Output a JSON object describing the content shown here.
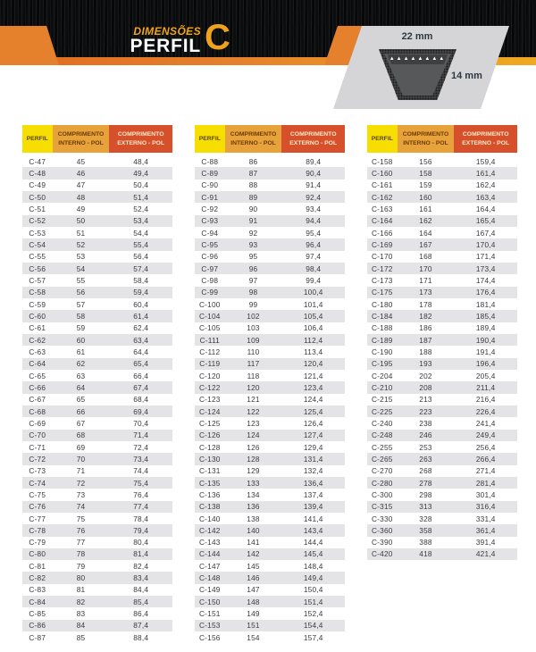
{
  "header": {
    "kicker": "DIMENSÕES",
    "title": "PERFIL",
    "profile_letter": "C",
    "colors": {
      "banner_black": "#0c0d0e",
      "accent_orange": "#e5812c",
      "accent_amber": "#efa922",
      "kicker_gold": "#f0a41e",
      "letter_gold": "#efa31c"
    }
  },
  "diagram": {
    "top_width_label": "22 mm",
    "height_label": "14 mm",
    "cord_pattern": "▲▲▲▲▲▲▲▲"
  },
  "table_headers": [
    "PERFIL",
    "COMPRIMENTO INTERNO - POL",
    "COMPRIMENTO EXTERNO - POL"
  ],
  "header_colors": {
    "perfil_bg": "#f6df00",
    "interno_bg": "#e8a23c",
    "externo_bg": "#d6502c"
  },
  "tables": [
    {
      "rows": [
        [
          "C-47",
          "45",
          "48,4"
        ],
        [
          "C-48",
          "46",
          "49,4"
        ],
        [
          "C-49",
          "47",
          "50,4"
        ],
        [
          "C-50",
          "48",
          "51,4"
        ],
        [
          "C-51",
          "49",
          "52,4"
        ],
        [
          "C-52",
          "50",
          "53,4"
        ],
        [
          "C-53",
          "51",
          "54,4"
        ],
        [
          "C-54",
          "52",
          "55,4"
        ],
        [
          "C-55",
          "53",
          "56,4"
        ],
        [
          "C-56",
          "54",
          "57,4"
        ],
        [
          "C-57",
          "55",
          "58,4"
        ],
        [
          "C-58",
          "56",
          "59,4"
        ],
        [
          "C-59",
          "57",
          "60,4"
        ],
        [
          "C-60",
          "58",
          "61,4"
        ],
        [
          "C-61",
          "59",
          "62,4"
        ],
        [
          "C-62",
          "60",
          "63,4"
        ],
        [
          "C-63",
          "61",
          "64,4"
        ],
        [
          "C-64",
          "62",
          "65,4"
        ],
        [
          "C-65",
          "63",
          "66,4"
        ],
        [
          "C-66",
          "64",
          "67,4"
        ],
        [
          "C-67",
          "65",
          "68,4"
        ],
        [
          "C-68",
          "66",
          "69,4"
        ],
        [
          "C-69",
          "67",
          "70,4"
        ],
        [
          "C-70",
          "68",
          "71,4"
        ],
        [
          "C-71",
          "69",
          "72,4"
        ],
        [
          "C-72",
          "70",
          "73,4"
        ],
        [
          "C-73",
          "71",
          "74,4"
        ],
        [
          "C-74",
          "72",
          "75,4"
        ],
        [
          "C-75",
          "73",
          "76,4"
        ],
        [
          "C-76",
          "74",
          "77,4"
        ],
        [
          "C-77",
          "75",
          "78,4"
        ],
        [
          "C-78",
          "76",
          "79,4"
        ],
        [
          "C-79",
          "77",
          "80,4"
        ],
        [
          "C-80",
          "78",
          "81,4"
        ],
        [
          "C-81",
          "79",
          "82,4"
        ],
        [
          "C-82",
          "80",
          "83,4"
        ],
        [
          "C-83",
          "81",
          "84,4"
        ],
        [
          "C-84",
          "82",
          "85,4"
        ],
        [
          "C-85",
          "83",
          "86,4"
        ],
        [
          "C-86",
          "84",
          "87,4"
        ],
        [
          "C-87",
          "85",
          "88,4"
        ]
      ]
    },
    {
      "rows": [
        [
          "C-88",
          "86",
          "89,4"
        ],
        [
          "C-89",
          "87",
          "90,4"
        ],
        [
          "C-90",
          "88",
          "91,4"
        ],
        [
          "C-91",
          "89",
          "92,4"
        ],
        [
          "C-92",
          "90",
          "93,4"
        ],
        [
          "C-93",
          "91",
          "94,4"
        ],
        [
          "C-94",
          "92",
          "95,4"
        ],
        [
          "C-95",
          "93",
          "96,4"
        ],
        [
          "C-96",
          "95",
          "97,4"
        ],
        [
          "C-97",
          "96",
          "98,4"
        ],
        [
          "C-98",
          "97",
          "99,4"
        ],
        [
          "C-99",
          "98",
          "100,4"
        ],
        [
          "C-100",
          "99",
          "101,4"
        ],
        [
          "C-104",
          "102",
          "105,4"
        ],
        [
          "C-105",
          "103",
          "106,4"
        ],
        [
          "C-111",
          "109",
          "112,4"
        ],
        [
          "C-112",
          "110",
          "113,4"
        ],
        [
          "C-119",
          "117",
          "120,4"
        ],
        [
          "C-120",
          "118",
          "121,4"
        ],
        [
          "C-122",
          "120",
          "123,4"
        ],
        [
          "C-123",
          "121",
          "124,4"
        ],
        [
          "C-124",
          "122",
          "125,4"
        ],
        [
          "C-125",
          "123",
          "126,4"
        ],
        [
          "C-126",
          "124",
          "127,4"
        ],
        [
          "C-128",
          "126",
          "129,4"
        ],
        [
          "C-130",
          "128",
          "131,4"
        ],
        [
          "C-131",
          "129",
          "132,4"
        ],
        [
          "C-135",
          "133",
          "136,4"
        ],
        [
          "C-136",
          "134",
          "137,4"
        ],
        [
          "C-138",
          "136",
          "139,4"
        ],
        [
          "C-140",
          "138",
          "141,4"
        ],
        [
          "C-142",
          "140",
          "143,4"
        ],
        [
          "C-143",
          "141",
          "144,4"
        ],
        [
          "C-144",
          "142",
          "145,4"
        ],
        [
          "C-147",
          "145",
          "148,4"
        ],
        [
          "C-148",
          "146",
          "149,4"
        ],
        [
          "C-149",
          "147",
          "150,4"
        ],
        [
          "C-150",
          "148",
          "151,4"
        ],
        [
          "C-151",
          "149",
          "152,4"
        ],
        [
          "C-153",
          "151",
          "154,4"
        ],
        [
          "C-156",
          "154",
          "157,4"
        ]
      ]
    },
    {
      "rows": [
        [
          "C-158",
          "156",
          "159,4"
        ],
        [
          "C-160",
          "158",
          "161,4"
        ],
        [
          "C-161",
          "159",
          "162,4"
        ],
        [
          "C-162",
          "160",
          "163,4"
        ],
        [
          "C-163",
          "161",
          "164,4"
        ],
        [
          "C-164",
          "162",
          "165,4"
        ],
        [
          "C-166",
          "164",
          "167,4"
        ],
        [
          "C-169",
          "167",
          "170,4"
        ],
        [
          "C-170",
          "168",
          "171,4"
        ],
        [
          "C-172",
          "170",
          "173,4"
        ],
        [
          "C-173",
          "171",
          "174,4"
        ],
        [
          "C-175",
          "173",
          "176,4"
        ],
        [
          "C-180",
          "178",
          "181,4"
        ],
        [
          "C-184",
          "182",
          "185,4"
        ],
        [
          "C-188",
          "186",
          "189,4"
        ],
        [
          "C-189",
          "187",
          "190,4"
        ],
        [
          "C-190",
          "188",
          "191,4"
        ],
        [
          "C-195",
          "193",
          "196,4"
        ],
        [
          "C-204",
          "202",
          "205,4"
        ],
        [
          "C-210",
          "208",
          "211,4"
        ],
        [
          "C-215",
          "213",
          "216,4"
        ],
        [
          "C-225",
          "223",
          "226,4"
        ],
        [
          "C-240",
          "238",
          "241,4"
        ],
        [
          "C-248",
          "246",
          "249,4"
        ],
        [
          "C-255",
          "253",
          "256,4"
        ],
        [
          "C-265",
          "263",
          "266,4"
        ],
        [
          "C-270",
          "268",
          "271,4"
        ],
        [
          "C-280",
          "278",
          "281,4"
        ],
        [
          "C-300",
          "298",
          "301,4"
        ],
        [
          "C-315",
          "313",
          "316,4"
        ],
        [
          "C-330",
          "328",
          "331,4"
        ],
        [
          "C-360",
          "358",
          "361,4"
        ],
        [
          "C-390",
          "388",
          "391,4"
        ],
        [
          "C-420",
          "418",
          "421,4"
        ]
      ]
    }
  ]
}
